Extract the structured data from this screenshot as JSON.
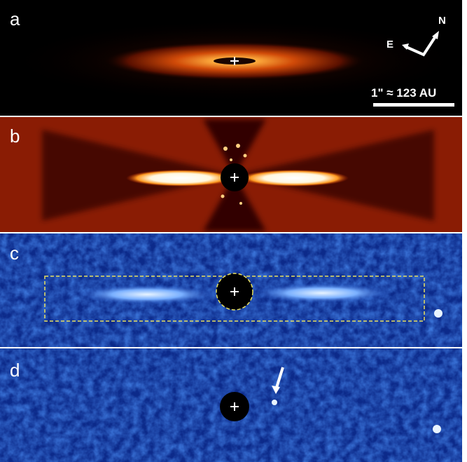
{
  "panels": [
    {
      "label": "a"
    },
    {
      "label": "b"
    },
    {
      "label": "c"
    },
    {
      "label": "d"
    }
  ],
  "compass": {
    "east": "E",
    "north": "N"
  },
  "scale_bar": "1\" ≈ 123 AU"
}
